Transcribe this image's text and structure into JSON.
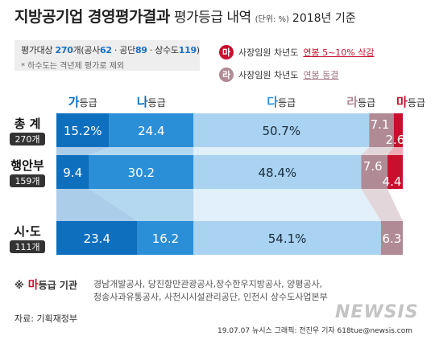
{
  "header": {
    "title_main": "지방공기업 경영평가결과",
    "title_sub": "평가등급 내역",
    "unit": "(단위: %)",
    "year": "2018년 기준"
  },
  "info": {
    "prefix": "평가대상",
    "count": "270",
    "suffix": "개(공사",
    "gongsa": "62",
    "gongdan_label": " · 공단",
    "gongdan": "89",
    "sangsu_label": " · 상수도",
    "sangsu": "119",
    "close": ")",
    "note": "* 하수도는 격년제 평가로 제외"
  },
  "legend": [
    {
      "badge": "마",
      "text": "사장임원 차년도",
      "tail": "연봉 5~10% 삭감",
      "color": "#c8102e",
      "tail_color": "#c8102e"
    },
    {
      "badge": "라",
      "text": "사장임원 차년도",
      "tail": "연봉 동결",
      "color": "#b08a95",
      "tail_color": "#a07585"
    }
  ],
  "chart_data": {
    "type": "bar",
    "orientation": "horizontal",
    "stacked": true,
    "grade_suffix": "등급",
    "categories": [
      {
        "name": "총 계",
        "count": "270개"
      },
      {
        "name": "행안부",
        "count": "159개"
      },
      {
        "name": "시·도",
        "count": "111개"
      }
    ],
    "series": [
      {
        "name": "가",
        "values": [
          15.2,
          9.4,
          23.4
        ],
        "labels": [
          "15.2%",
          "9.4",
          "23.4"
        ],
        "color": "#0e6fbf",
        "label_color": "#ffffff"
      },
      {
        "name": "나",
        "values": [
          24.4,
          30.2,
          16.2
        ],
        "labels": [
          "24.4",
          "30.2",
          "16.2"
        ],
        "color": "#2b8fd8",
        "label_color": "#ffffff"
      },
      {
        "name": "다",
        "values": [
          50.7,
          48.4,
          54.1
        ],
        "labels": [
          "50.7%",
          "48.4%",
          "54.1%"
        ],
        "color": "#a9d3f0",
        "label_color": "#1a2a3a"
      },
      {
        "name": "라",
        "values": [
          7.1,
          7.6,
          6.3
        ],
        "labels": [
          "7.1",
          "7.6",
          "6.3"
        ],
        "color": "#b08a95",
        "label_color": "#ffffff"
      },
      {
        "name": "마",
        "values": [
          2.6,
          4.4,
          0
        ],
        "labels": [
          "2.6",
          "4.4",
          ""
        ],
        "color": "#c8102e",
        "label_color": "#ffffff"
      }
    ],
    "xlim": [
      0,
      100
    ],
    "header_colors": [
      "#0e6fbf",
      "#0e6fbf",
      "#2b8fd8",
      "#b08a95",
      "#c8102e"
    ]
  },
  "footnote": {
    "prefix": "※",
    "badge": "마",
    "label": "등급 기관",
    "orgs_line1": "경남개발공사, 당진항만관광공사,장수한우지방공사, 양평공사,",
    "orgs_line2": "청송사과유통공사, 사천시시설관리공단, 인천시 상수도사업본부"
  },
  "source": "자료: 기획재정부",
  "brand": "NEWSIS",
  "credit": "19.07.07  뉴시스 그래픽: 전진우 기자  618tue@newsis.com"
}
